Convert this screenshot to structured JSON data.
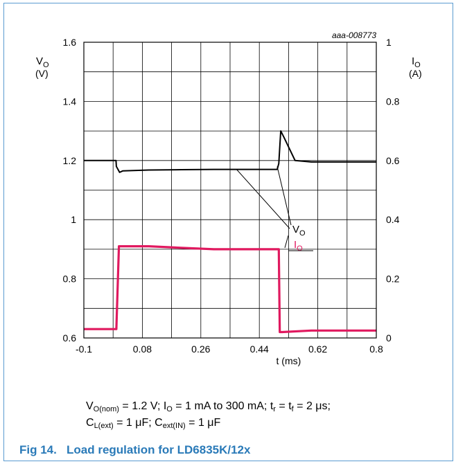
{
  "chart_data": {
    "type": "line",
    "figure_id": "aaa-008773",
    "x_axis": {
      "label": "t (ms)",
      "lim": [
        -0.1,
        0.8
      ],
      "ticks": [
        "-0.1",
        "0.08",
        "0.26",
        "0.44",
        "0.62",
        "0.8"
      ],
      "tick_values": [
        -0.1,
        0.08,
        0.26,
        0.44,
        0.62,
        0.8
      ]
    },
    "y_left": {
      "label_main": "V",
      "label_sub": "O",
      "unit": "(V)",
      "lim": [
        0.6,
        1.6
      ],
      "ticks": [
        "0.6",
        "0.8",
        "1",
        "1.2",
        "1.4",
        "1.6"
      ],
      "tick_values": [
        0.6,
        0.8,
        1.0,
        1.2,
        1.4,
        1.6
      ]
    },
    "y_right": {
      "label_main": "I",
      "label_sub": "O",
      "unit": "(A)",
      "lim": [
        0,
        1
      ],
      "ticks": [
        "0",
        "0.2",
        "0.4",
        "0.6",
        "0.8",
        "1"
      ],
      "tick_values": [
        0,
        0.2,
        0.4,
        0.6,
        0.8,
        1.0
      ]
    },
    "grid": true,
    "series": [
      {
        "name_main": "V",
        "name_sub": "O",
        "axis": "left",
        "color": "#000000",
        "x": [
          -0.1,
          -0.001,
          0.0,
          0.01,
          0.02,
          0.1,
          0.2,
          0.3,
          0.4,
          0.495,
          0.5,
          0.506,
          0.515,
          0.55,
          0.6,
          0.7,
          0.8
        ],
        "y": [
          1.2,
          1.2,
          1.18,
          1.16,
          1.165,
          1.168,
          1.169,
          1.17,
          1.17,
          1.17,
          1.19,
          1.3,
          1.28,
          1.2,
          1.195,
          1.195,
          1.195
        ]
      },
      {
        "name_main": "I",
        "name_sub": "O",
        "axis": "right",
        "color": "#e0195f",
        "x": [
          -0.1,
          0.0,
          0.008,
          0.1,
          0.2,
          0.3,
          0.4,
          0.5,
          0.503,
          0.51,
          0.6,
          0.7,
          0.8
        ],
        "y": [
          0.03,
          0.03,
          0.31,
          0.31,
          0.305,
          0.3,
          0.3,
          0.3,
          0.02,
          0.02,
          0.025,
          0.025,
          0.025
        ]
      }
    ]
  },
  "conditions": {
    "line1": {
      "v": "V",
      "v_sub": "O(nom)",
      "v_val": " = 1.2 V; ",
      "i": "I",
      "i_sub": "O",
      "i_val": " = 1 mA to 300 mA; ",
      "tr": "t",
      "tr_sub": "r",
      "eq": " = ",
      "tf": "t",
      "tf_sub": "f",
      "tf_val": " = 2 μs;"
    },
    "line2": {
      "c1": "C",
      "c1_sub": "L(ext)",
      "c1_val": " = 1 μF; ",
      "c2": "C",
      "c2_sub": "ext(IN)",
      "c2_val": " = 1 μF"
    }
  },
  "caption": "Fig 14.   Load regulation for LD6835K/12x"
}
